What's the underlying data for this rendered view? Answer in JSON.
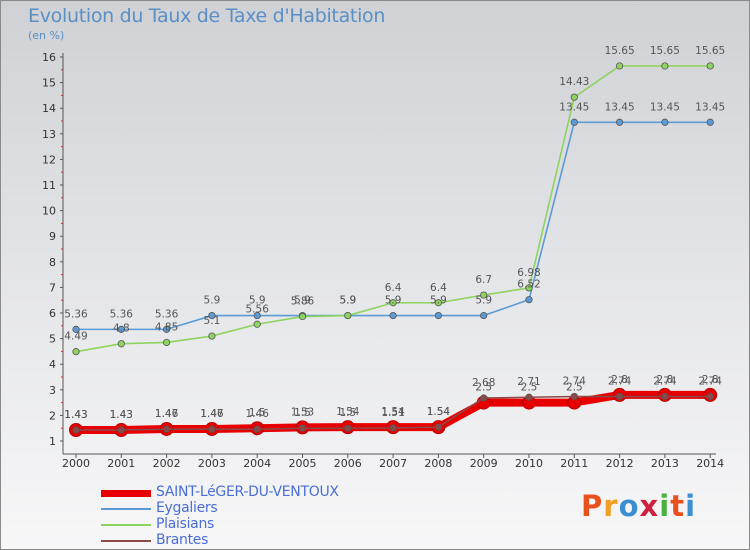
{
  "header": {
    "title": "Evolution du Taux de Taxe d'Habitation",
    "subtitle": "(en %)"
  },
  "logo": {
    "text": "Proxiti",
    "colors": [
      "#e8501e",
      "#f0a020",
      "#3b8fd0",
      "#d02040",
      "#4ab040",
      "#e8501e",
      "#3b8fd0"
    ]
  },
  "chart_data": {
    "type": "line",
    "categories": [
      "2000",
      "2001",
      "2002",
      "2003",
      "2004",
      "2005",
      "2006",
      "2007",
      "2008",
      "2009",
      "2010",
      "2011",
      "2012",
      "2013",
      "2014"
    ],
    "ylim": [
      0.5,
      16
    ],
    "yticks": [
      1,
      2,
      3,
      4,
      5,
      6,
      7,
      8,
      9,
      10,
      11,
      12,
      13,
      14,
      15,
      16
    ],
    "grid": false,
    "legend_position": "bottom-left",
    "series": [
      {
        "name": "SAINT-LéGER-DU-VENTOUX",
        "color": "#e80000",
        "values": [
          1.43,
          1.43,
          1.47,
          1.47,
          1.5,
          1.53,
          1.54,
          1.54,
          1.54,
          2.5,
          2.5,
          2.5,
          2.8,
          2.8,
          2.8
        ],
        "labels": [
          "1.43",
          "1.43",
          "1.47",
          "1.47",
          "1.5",
          "1.53",
          "1.54",
          "1.54",
          "1.54",
          "2.5",
          "2.5",
          "2.5",
          "2.8",
          "2.8",
          "2.8"
        ]
      },
      {
        "name": "Eygaliers",
        "color": "#5b9bd5",
        "values": [
          5.36,
          5.36,
          5.36,
          5.9,
          5.9,
          5.9,
          5.9,
          5.9,
          5.9,
          5.9,
          6.52,
          13.45,
          13.45,
          13.45,
          13.45
        ],
        "labels": [
          "5.36",
          "5.36",
          "5.36",
          "5.9",
          "5.9",
          "5.9",
          "5.9",
          "5.9",
          "5.9",
          "5.9",
          "6.52",
          "13.45",
          "13.45",
          "13.45",
          "13.45"
        ]
      },
      {
        "name": "Plaisians",
        "color": "#8dd35f",
        "values": [
          4.49,
          4.8,
          4.85,
          5.1,
          5.56,
          5.86,
          5.9,
          6.4,
          6.4,
          6.7,
          6.98,
          14.43,
          15.65,
          15.65,
          15.65
        ],
        "labels": [
          "4.49",
          "4.8",
          "4.85",
          "5.1",
          "5.56",
          "5.86",
          "5.9",
          "6.4",
          "6.4",
          "6.7",
          "6.98",
          "14.43",
          "15.65",
          "15.65",
          "15.65"
        ]
      },
      {
        "name": "Brantes",
        "color": "#8b4a4a",
        "values": [
          1.43,
          1.43,
          1.46,
          1.46,
          1.46,
          1.5,
          1.5,
          1.51,
          1.54,
          2.68,
          2.71,
          2.74,
          2.74,
          2.74,
          2.74
        ],
        "labels": [
          "1.43",
          "1.43",
          "1.46",
          "1.46",
          "1.46",
          "1.5",
          "1.5",
          "1.51",
          "1.54",
          "2.68",
          "2.71",
          "2.74",
          "2.74",
          "2.74",
          "2.74"
        ]
      }
    ]
  }
}
